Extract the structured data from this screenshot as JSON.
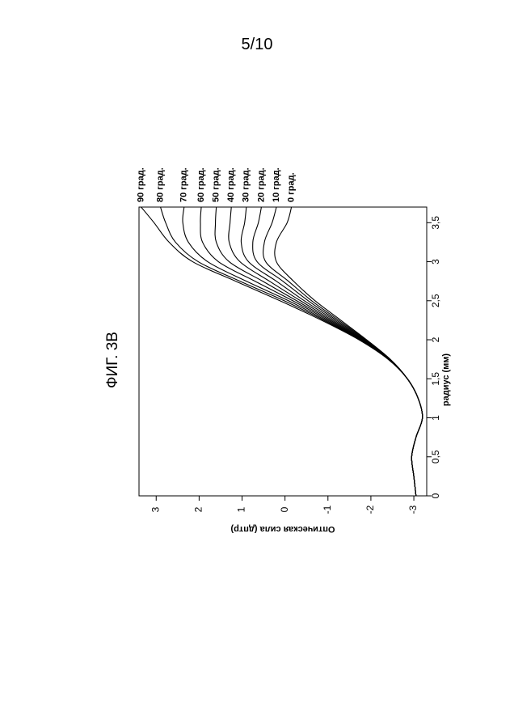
{
  "page": {
    "number": "5/10"
  },
  "chart_data": {
    "type": "line",
    "title": "ФИГ. 3В",
    "xlabel": "радиус (мм)",
    "ylabel": "Оптическая сила (дптр)",
    "xlim": [
      0,
      3.7
    ],
    "ylim": [
      -3.3,
      3.4
    ],
    "x_ticks": [
      0,
      0.5,
      1,
      1.5,
      2,
      2.5,
      3,
      3.5
    ],
    "x_tick_labels": [
      "0",
      "0,5",
      "1",
      "1,5",
      "2",
      "2,5",
      "3",
      "3,5"
    ],
    "y_ticks": [
      -3,
      -2,
      -1,
      0,
      1,
      2,
      3
    ],
    "y_tick_labels": [
      "-3",
      "-2",
      "-1",
      "0",
      "1",
      "2",
      "3"
    ],
    "orientation": "rotated 90° counter-clockwise on page",
    "x": [
      0,
      0.25,
      0.5,
      0.75,
      1.0,
      1.25,
      1.5,
      1.75,
      2.0,
      2.25,
      2.5,
      2.75,
      3.0,
      3.25,
      3.5,
      3.7
    ],
    "series": [
      {
        "name": "0 град.",
        "values": [
          -3.05,
          -3.0,
          -2.95,
          -3.05,
          -3.2,
          -3.1,
          -2.85,
          -2.45,
          -1.9,
          -1.3,
          -0.7,
          -0.2,
          0.2,
          0.2,
          -0.05,
          -0.15
        ]
      },
      {
        "name": "10 град.",
        "values": [
          -3.05,
          -3.0,
          -2.95,
          -3.05,
          -3.2,
          -3.1,
          -2.85,
          -2.45,
          -1.88,
          -1.25,
          -0.62,
          -0.08,
          0.45,
          0.48,
          0.3,
          0.2
        ]
      },
      {
        "name": "20 град.",
        "values": [
          -3.05,
          -3.0,
          -2.95,
          -3.05,
          -3.2,
          -3.1,
          -2.85,
          -2.44,
          -1.86,
          -1.2,
          -0.54,
          0.05,
          0.65,
          0.75,
          0.62,
          0.55
        ]
      },
      {
        "name": "30 град.",
        "values": [
          -3.05,
          -3.0,
          -2.95,
          -3.05,
          -3.2,
          -3.1,
          -2.85,
          -2.44,
          -1.84,
          -1.15,
          -0.45,
          0.2,
          0.85,
          1.02,
          0.94,
          0.9
        ]
      },
      {
        "name": "40 град.",
        "values": [
          -3.05,
          -3.0,
          -2.95,
          -3.05,
          -3.2,
          -3.1,
          -2.85,
          -2.43,
          -1.82,
          -1.1,
          -0.36,
          0.36,
          1.05,
          1.3,
          1.28,
          1.25
        ]
      },
      {
        "name": "50 град.",
        "values": [
          -3.05,
          -3.0,
          -2.95,
          -3.05,
          -3.2,
          -3.1,
          -2.85,
          -2.43,
          -1.8,
          -1.05,
          -0.27,
          0.52,
          1.3,
          1.6,
          1.62,
          1.6
        ]
      },
      {
        "name": "60 град.",
        "values": [
          -3.05,
          -3.0,
          -2.95,
          -3.05,
          -3.2,
          -3.1,
          -2.85,
          -2.42,
          -1.78,
          -1.0,
          -0.18,
          0.7,
          1.55,
          1.92,
          1.97,
          1.95
        ]
      },
      {
        "name": "70 град.",
        "values": [
          -3.05,
          -3.0,
          -2.95,
          -3.05,
          -3.2,
          -3.1,
          -2.85,
          -2.42,
          -1.76,
          -0.95,
          -0.08,
          0.9,
          1.8,
          2.25,
          2.38,
          2.35
        ]
      },
      {
        "name": "80 град.",
        "values": [
          -3.05,
          -3.0,
          -2.95,
          -3.05,
          -3.2,
          -3.1,
          -2.85,
          -2.41,
          -1.74,
          -0.9,
          0.02,
          1.05,
          2.02,
          2.55,
          2.78,
          2.9
        ]
      },
      {
        "name": "90 град.",
        "values": [
          -3.05,
          -3.0,
          -2.95,
          -3.05,
          -3.2,
          -3.1,
          -2.85,
          -2.4,
          -1.72,
          -0.85,
          0.12,
          1.15,
          2.15,
          2.7,
          3.05,
          3.35
        ]
      }
    ],
    "grid": false,
    "legend": "labels at curve ends"
  }
}
